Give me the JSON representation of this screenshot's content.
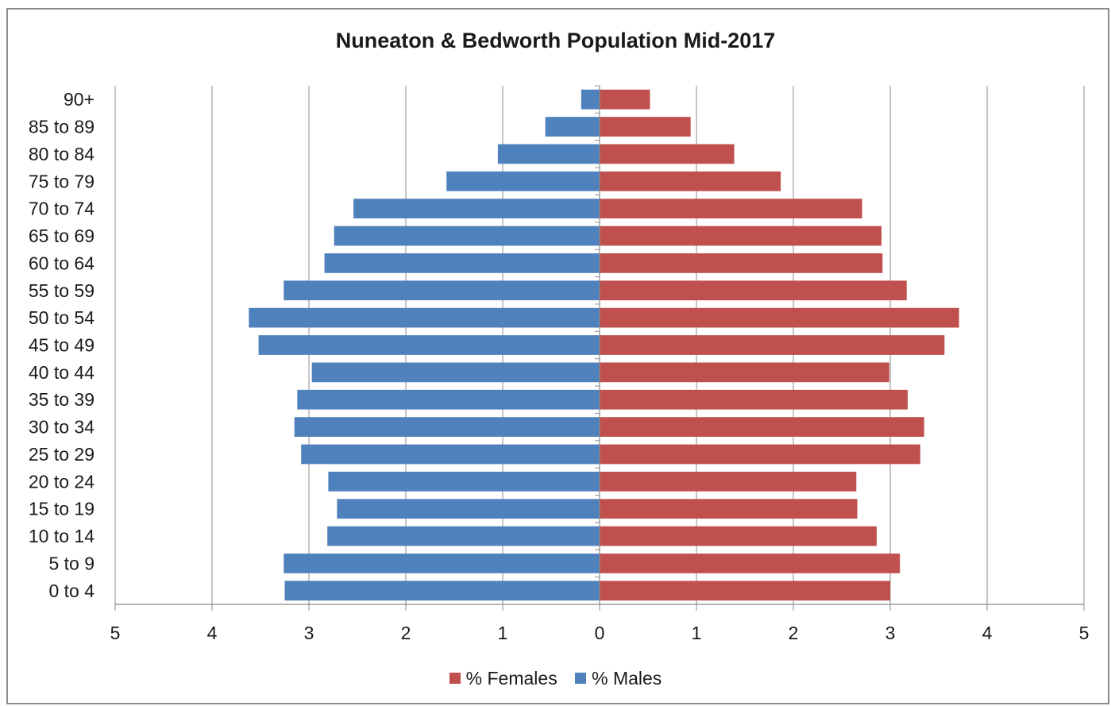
{
  "chart_data": {
    "type": "bar",
    "orientation": "horizontal",
    "title": "Nuneaton & Bedworth Population Mid-2017",
    "xlabel": "",
    "ylabel": "",
    "xlim": [
      -5,
      5
    ],
    "xticks": [
      -5,
      -4,
      -3,
      -2,
      -1,
      0,
      1,
      2,
      3,
      4,
      5
    ],
    "xtick_labels": [
      "5",
      "4",
      "3",
      "2",
      "1",
      "0",
      "1",
      "2",
      "3",
      "4",
      "5"
    ],
    "grid": "vertical",
    "legend_position": "bottom",
    "categories": [
      "90+",
      "85 to 89",
      "80 to 84",
      "75 to 79",
      "70 to 74",
      "65 to 69",
      "60 to 64",
      "55 to 59",
      "50 to 54",
      "45 to 49",
      "40 to 44",
      "35 to 39",
      "30 to 34",
      "25 to 29",
      "20 to 24",
      "15 to 19",
      "10 to 14",
      "5 to 9",
      "0 to 4"
    ],
    "series": [
      {
        "name": "% Females",
        "color": "#c0504d",
        "values": [
          0.52,
          0.94,
          1.39,
          1.87,
          2.71,
          2.91,
          2.92,
          3.17,
          3.71,
          3.56,
          2.99,
          3.18,
          3.35,
          3.31,
          2.65,
          2.66,
          2.86,
          3.1,
          3.0
        ]
      },
      {
        "name": "% Males",
        "color": "#4f81bd",
        "values": [
          0.19,
          0.56,
          1.05,
          1.58,
          2.54,
          2.74,
          2.84,
          3.26,
          3.62,
          3.52,
          2.97,
          3.12,
          3.15,
          3.08,
          2.8,
          2.71,
          2.81,
          3.26,
          3.25
        ]
      }
    ]
  }
}
